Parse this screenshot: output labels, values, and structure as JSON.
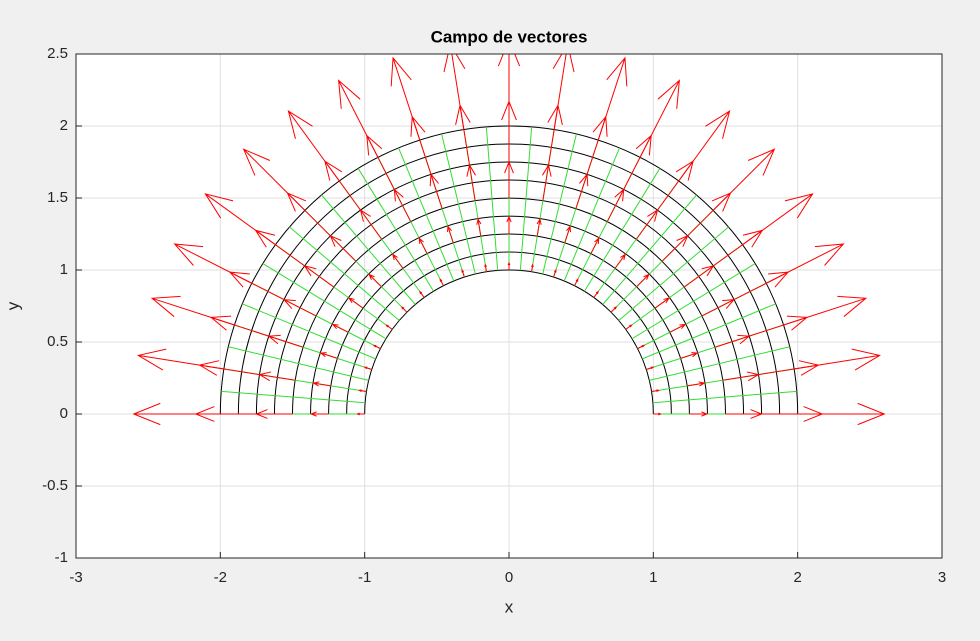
{
  "chart_data": {
    "type": "quiver",
    "title": "Campo de vectores",
    "xlabel": "x",
    "ylabel": "y",
    "xlim": [
      -3,
      3
    ],
    "ylim": [
      -1,
      2.5
    ],
    "xticks": [
      -3,
      -2,
      -1,
      0,
      1,
      2,
      3
    ],
    "yticks": [
      -1,
      -0.5,
      0,
      0.5,
      1,
      1.5,
      2,
      2.5
    ],
    "grid": true,
    "arcs": {
      "color": "#000000",
      "radii": [
        1,
        1.125,
        1.25,
        1.375,
        1.5,
        1.625,
        1.75,
        1.875,
        2
      ]
    },
    "radials": {
      "color": "#33dd33",
      "angles": [
        0,
        4.5,
        9,
        13.5,
        18,
        22.5,
        27,
        31.5,
        36,
        40.5,
        45,
        49.5,
        54,
        58.5,
        63,
        67.5,
        72,
        76.5,
        81,
        85.5,
        90,
        94.5,
        99,
        103.5,
        108,
        112.5,
        117,
        121.5,
        126,
        130.5,
        135,
        139.5,
        144,
        148.5,
        153,
        157.5,
        162,
        166.5,
        171,
        175.5,
        180
      ]
    },
    "arrows": {
      "color": "#ff0000",
      "radii": [
        1,
        1.25,
        1.5,
        1.75,
        2
      ],
      "lengths": [
        0.05,
        0.12,
        0.25,
        0.42,
        0.6
      ],
      "angles": [
        0,
        9,
        18,
        27,
        36,
        45,
        54,
        63,
        72,
        81,
        90,
        99,
        108,
        117,
        126,
        135,
        144,
        153,
        162,
        171,
        180
      ]
    }
  }
}
